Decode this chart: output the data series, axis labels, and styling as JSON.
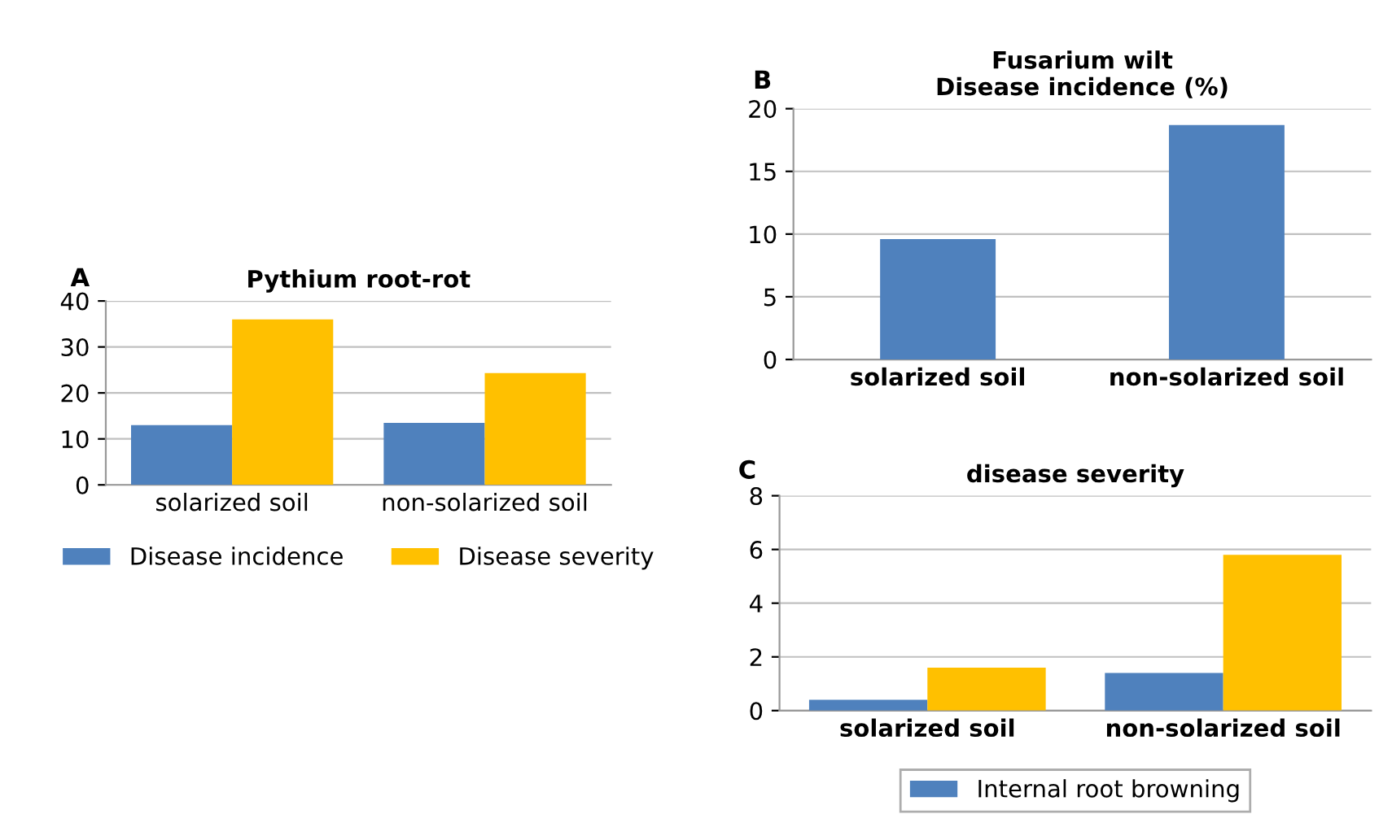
{
  "chart_data": [
    {
      "type": "bar",
      "title": "Pythium root-rot",
      "annotations": [
        "A"
      ],
      "categories": [
        "solarized soil",
        "non-solarized soil"
      ],
      "series": [
        {
          "name": "Disease incidence",
          "color": "#4f81bd",
          "values": [
            13,
            13.5
          ]
        },
        {
          "name": "Disease severity",
          "color": "#ffc000",
          "values": [
            36,
            24.3
          ]
        }
      ],
      "ylim": [
        0,
        40
      ],
      "yticks": [
        0,
        10,
        20,
        30,
        40
      ],
      "grid": "y",
      "legend": "bottom"
    },
    {
      "type": "bar",
      "title": "Fusarium wilt\nDisease incidence (%)",
      "annotations": [
        "B"
      ],
      "categories": [
        "solarized soil",
        "non-solarized soil"
      ],
      "series": [
        {
          "color": "#4f81bd",
          "values": [
            9.6,
            18.7
          ]
        }
      ],
      "ylim": [
        0,
        20
      ],
      "yticks": [
        0,
        5,
        10,
        15,
        20
      ],
      "grid": "y"
    },
    {
      "type": "bar",
      "title": "disease severity",
      "annotations": [
        "C"
      ],
      "categories": [
        "solarized soil",
        "non-solarized soil"
      ],
      "series": [
        {
          "name": "Internal root browning",
          "color": "#4f81bd",
          "values": [
            0.4,
            1.4
          ]
        },
        {
          "color": "#ffc000",
          "values": [
            1.6,
            5.8
          ]
        }
      ],
      "ylim": [
        0,
        8
      ],
      "yticks": [
        0,
        2,
        4,
        6,
        8
      ],
      "grid": "y",
      "legend": "bottom"
    }
  ]
}
